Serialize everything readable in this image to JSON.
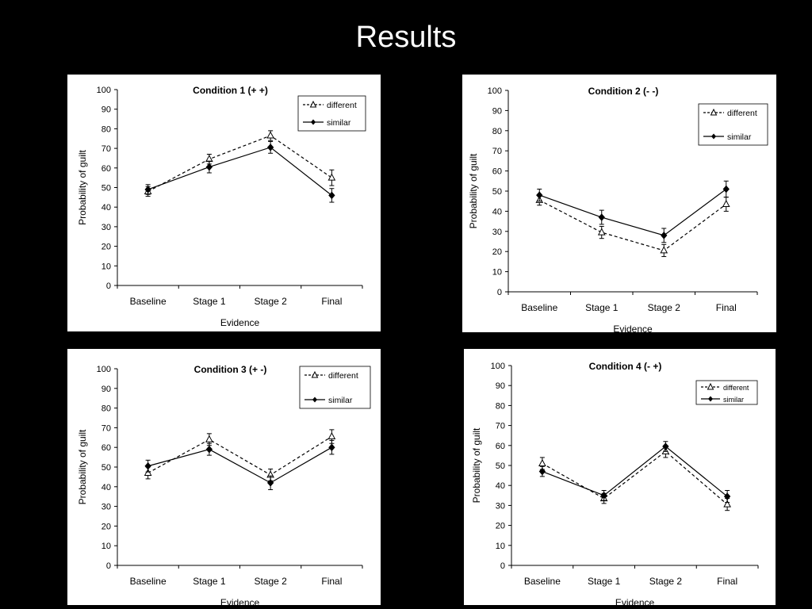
{
  "slide": {
    "title": "Results"
  },
  "chart_data": [
    {
      "type": "line",
      "title": "Condition 1 (+ +)",
      "xlabel": "Evidence",
      "ylabel": "Probability of guilt",
      "categories": [
        "Baseline",
        "Stage 1",
        "Stage 2",
        "Final"
      ],
      "ylim": [
        0,
        100
      ],
      "yticks": [
        0,
        10,
        20,
        30,
        40,
        50,
        60,
        70,
        80,
        90,
        100
      ],
      "legend_position": "top-right",
      "series": [
        {
          "name": "different",
          "style": "dashed-open-triangle",
          "values": [
            48,
            64.5,
            76.5,
            55
          ],
          "errors": [
            2.5,
            2.5,
            2.5,
            4
          ]
        },
        {
          "name": "similar",
          "style": "solid-filled-diamond",
          "values": [
            49,
            60.5,
            70.5,
            46
          ],
          "errors": [
            2.5,
            3,
            3,
            3.5
          ]
        }
      ]
    },
    {
      "type": "line",
      "title": "Condition 2 (- -)",
      "xlabel": "Evidence",
      "ylabel": "Probability of guilt",
      "categories": [
        "Baseline",
        "Stage 1",
        "Stage 2",
        "Final"
      ],
      "ylim": [
        0,
        100
      ],
      "yticks": [
        0,
        10,
        20,
        30,
        40,
        50,
        60,
        70,
        80,
        90,
        100
      ],
      "legend_position": "top-right",
      "series": [
        {
          "name": "different",
          "style": "dashed-open-triangle",
          "values": [
            45.5,
            29.5,
            20.5,
            43.5
          ],
          "errors": [
            2.5,
            3,
            3,
            3.5
          ]
        },
        {
          "name": "similar",
          "style": "solid-filled-diamond",
          "values": [
            48,
            37,
            28,
            51
          ],
          "errors": [
            3,
            3.5,
            3.5,
            4
          ]
        }
      ]
    },
    {
      "type": "line",
      "title": "Condition 3 (+ -)",
      "xlabel": "Evidence",
      "ylabel": "Probability of guilt",
      "categories": [
        "Baseline",
        "Stage 1",
        "Stage 2",
        "Final"
      ],
      "ylim": [
        0,
        100
      ],
      "yticks": [
        0,
        10,
        20,
        30,
        40,
        50,
        60,
        70,
        80,
        90,
        100
      ],
      "legend_position": "top-right",
      "series": [
        {
          "name": "different",
          "style": "dashed-open-triangle",
          "values": [
            47,
            64,
            46,
            65.5
          ],
          "errors": [
            3,
            3,
            3,
            3.5
          ]
        },
        {
          "name": "similar",
          "style": "solid-filled-diamond",
          "values": [
            50.5,
            59,
            42,
            60
          ],
          "errors": [
            3,
            3,
            3.5,
            3.5
          ]
        }
      ]
    },
    {
      "type": "line",
      "title": "Condition 4 (- +)",
      "xlabel": "Evidence",
      "ylabel": "Probability of guilt",
      "categories": [
        "Baseline",
        "Stage 1",
        "Stage 2",
        "Final"
      ],
      "ylim": [
        0,
        100
      ],
      "yticks": [
        0,
        10,
        20,
        30,
        40,
        50,
        60,
        70,
        80,
        90,
        100
      ],
      "legend_position": "top-right",
      "series": [
        {
          "name": "different",
          "style": "dashed-open-triangle",
          "values": [
            51,
            33.5,
            57,
            30.5
          ],
          "errors": [
            3,
            2.5,
            3,
            3
          ]
        },
        {
          "name": "similar",
          "style": "solid-filled-diamond",
          "values": [
            47,
            35,
            59.5,
            34.5
          ],
          "errors": [
            2.5,
            2.5,
            2.5,
            3
          ]
        }
      ]
    }
  ]
}
